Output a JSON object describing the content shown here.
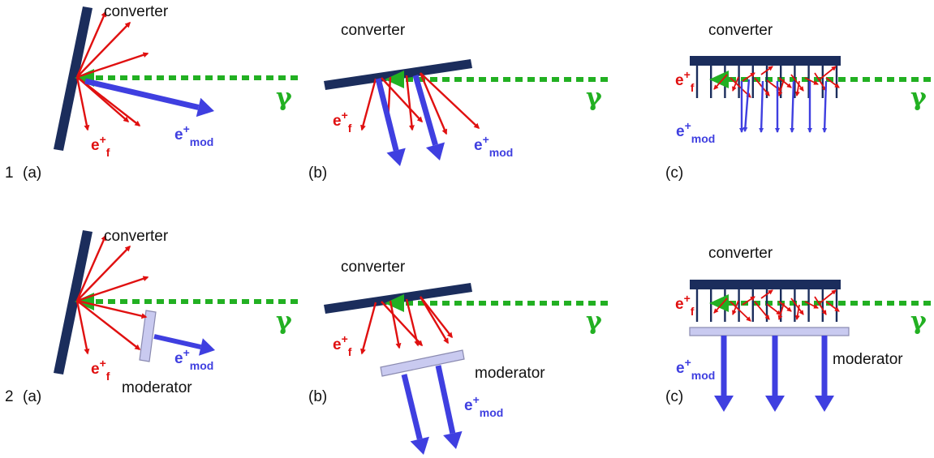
{
  "labels": {
    "converter": "converter",
    "moderator": "moderator",
    "gamma": "γ",
    "e_plus": "e",
    "sup_plus": "+",
    "sub_f": "f",
    "sub_mod": "mod"
  },
  "rows": [
    {
      "index": "1",
      "panels": [
        {
          "letter": "(a)",
          "type": "a",
          "moderator": false
        },
        {
          "letter": "(b)",
          "type": "b",
          "moderator": false
        },
        {
          "letter": "(c)",
          "type": "c",
          "moderator": false
        }
      ]
    },
    {
      "index": "2",
      "panels": [
        {
          "letter": "(a)",
          "type": "a",
          "moderator": true
        },
        {
          "letter": "(b)",
          "type": "b",
          "moderator": true
        },
        {
          "letter": "(c)",
          "type": "c",
          "moderator": true
        }
      ]
    }
  ],
  "colors": {
    "converter": "#1b2d5c",
    "fast_positron": "#e01010",
    "moderated_positron": "#3f3fe0",
    "gamma": "#22b022",
    "moderator_fill": "#c9caf0",
    "moderator_stroke": "#8a8ab0"
  }
}
